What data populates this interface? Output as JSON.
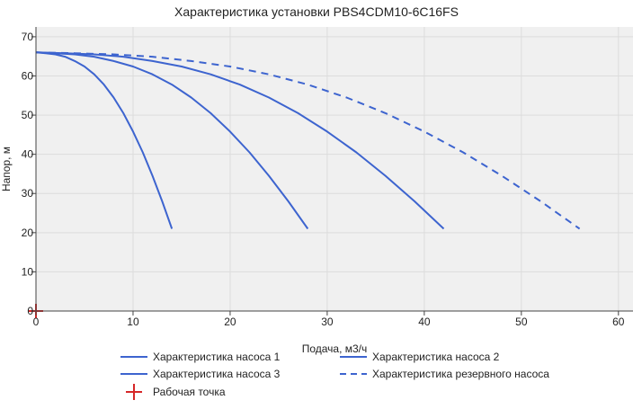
{
  "chart_data": {
    "type": "line",
    "title": "Характеристика установки PBS4CDM10-6C16FS",
    "xlabel": "Подача, м3/ч",
    "ylabel": "Напор, м",
    "xlim": [
      0,
      61.5
    ],
    "ylim": [
      0,
      72.5
    ],
    "xticks": [
      0,
      10,
      20,
      30,
      40,
      50,
      60
    ],
    "yticks": [
      0,
      10,
      20,
      30,
      40,
      50,
      60,
      70
    ],
    "grid": true,
    "legend_position": "bottom",
    "series": [
      {
        "name": "Характеристика насоса 1",
        "color": "#3d64cf",
        "dash": "solid",
        "x": [
          0,
          1,
          2,
          3,
          4,
          5,
          6,
          7,
          8,
          9,
          10,
          11,
          12,
          13,
          14
        ],
        "y": [
          66,
          65.8,
          65.5,
          64.9,
          63.8,
          62.4,
          60.4,
          57.8,
          54.5,
          50.5,
          45.8,
          40.5,
          34.5,
          28,
          21
        ]
      },
      {
        "name": "Характеристика насоса 2",
        "color": "#3d64cf",
        "dash": "solid",
        "x": [
          0,
          2,
          4,
          6,
          8,
          10,
          12,
          14,
          16,
          18,
          20,
          22,
          24,
          26,
          28
        ],
        "y": [
          66,
          65.8,
          65.5,
          64.9,
          63.8,
          62.4,
          60.4,
          57.8,
          54.5,
          50.5,
          45.8,
          40.5,
          34.5,
          28,
          21
        ]
      },
      {
        "name": "Характеристика насоса 3",
        "color": "#3d64cf",
        "dash": "solid",
        "x": [
          0,
          3,
          6,
          9,
          12,
          15,
          18,
          21,
          24,
          27,
          30,
          33,
          36,
          39,
          42
        ],
        "y": [
          66,
          65.8,
          65.5,
          64.9,
          63.8,
          62.4,
          60.4,
          57.8,
          54.5,
          50.5,
          45.8,
          40.5,
          34.5,
          28,
          21
        ]
      },
      {
        "name": "Характеристика резервного насоса",
        "color": "#3d64cf",
        "dash": "dash",
        "x": [
          0,
          4,
          8,
          12,
          16,
          20,
          24,
          28,
          32,
          36,
          40,
          44,
          48,
          52,
          56
        ],
        "y": [
          66,
          65.8,
          65.5,
          64.9,
          63.8,
          62.4,
          60.4,
          57.8,
          54.5,
          50.5,
          45.8,
          40.5,
          34.5,
          28,
          21
        ]
      }
    ],
    "work_point": {
      "name": "Рабочая точка",
      "color": "#d62728",
      "x": 0,
      "y": 0
    }
  }
}
